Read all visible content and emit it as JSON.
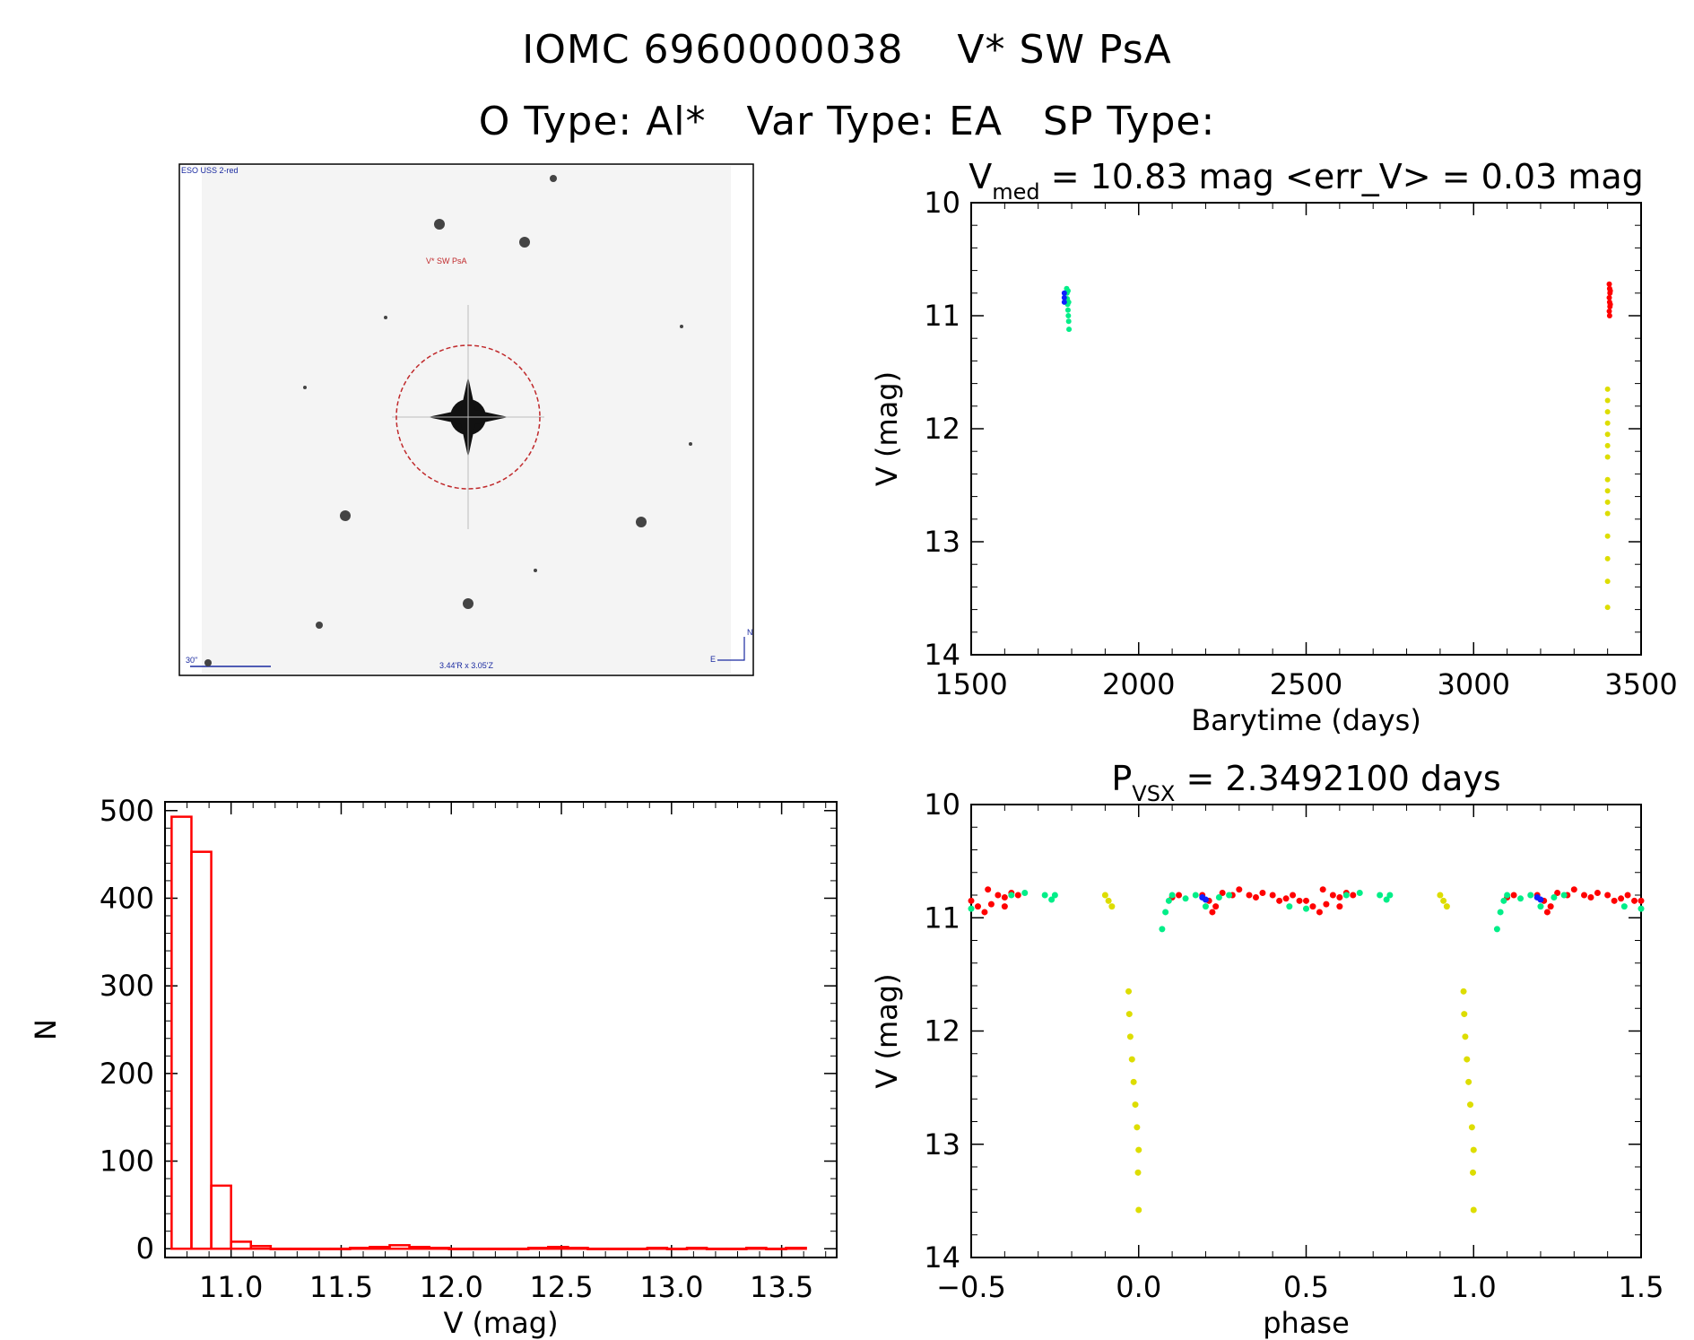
{
  "header": {
    "line1": "IOMC 6960000038    V* SW PsA",
    "line2": "O Type: Al*   Var Type: EA   SP Type:"
  },
  "image_panel": {
    "survey_label": "ESO USS 2-red",
    "target_label": "V* SW PsA",
    "scale_label": "30\"",
    "fov_label": "3.44'R x 3.05'Z",
    "north_label": "N",
    "east_label": "E",
    "circle_color": "#c0292b",
    "label_color": "#1a2aa0"
  },
  "colors": {
    "red": "#ff0000",
    "green": "#00ee88",
    "yellow": "#dddd00",
    "blue": "#1020ff"
  },
  "chart_data": [
    {
      "id": "lightcurve",
      "type": "scatter",
      "title_main": "V",
      "title_sub": "med",
      "title_rest": " =  10.83 mag <err_V> =  0.03 mag",
      "xlabel": "Barytime (days)",
      "ylabel": "V (mag)",
      "xlim": [
        1500,
        3500
      ],
      "ylim": [
        14,
        10
      ],
      "y_inverted": true,
      "xticks": [
        1500,
        2000,
        2500,
        3000,
        3500
      ],
      "yticks": [
        10,
        11,
        12,
        13,
        14
      ],
      "series": [
        {
          "color": "green",
          "points": [
            [
              1785,
              10.76
            ],
            [
              1786,
              10.8
            ],
            [
              1787,
              10.85
            ],
            [
              1788,
              10.9
            ],
            [
              1789,
              10.95
            ],
            [
              1790,
              11.0
            ],
            [
              1791,
              11.05
            ],
            [
              1792,
              11.12
            ],
            [
              1789,
              10.78
            ],
            [
              1791,
              10.88
            ]
          ]
        },
        {
          "color": "blue",
          "points": [
            [
              1778,
              10.8
            ],
            [
              1778,
              10.84
            ],
            [
              1778,
              10.88
            ]
          ]
        },
        {
          "color": "red",
          "points": [
            [
              3405,
              10.72
            ],
            [
              3406,
              10.76
            ],
            [
              3407,
              10.8
            ],
            [
              3405,
              10.84
            ],
            [
              3406,
              10.88
            ],
            [
              3407,
              10.92
            ],
            [
              3405,
              10.96
            ],
            [
              3406,
              11.0
            ],
            [
              3408,
              10.78
            ],
            [
              3408,
              10.9
            ]
          ]
        },
        {
          "color": "yellow",
          "points": [
            [
              3400,
              11.65
            ],
            [
              3400,
              11.75
            ],
            [
              3400,
              11.85
            ],
            [
              3400,
              11.95
            ],
            [
              3400,
              12.05
            ],
            [
              3400,
              12.15
            ],
            [
              3400,
              12.25
            ],
            [
              3400,
              12.45
            ],
            [
              3400,
              12.55
            ],
            [
              3400,
              12.65
            ],
            [
              3400,
              12.75
            ],
            [
              3400,
              12.95
            ],
            [
              3400,
              13.15
            ],
            [
              3400,
              13.35
            ],
            [
              3400,
              13.58
            ]
          ]
        }
      ]
    },
    {
      "id": "histogram",
      "type": "bar",
      "xlabel": "V (mag)",
      "ylabel": "N",
      "xlim": [
        10.7,
        13.75
      ],
      "ylim": [
        -10,
        510
      ],
      "xticks": [
        11.0,
        11.5,
        12.0,
        12.5,
        13.0,
        13.5
      ],
      "xtick_labels": [
        "11.0",
        "11.5",
        "12.0",
        "12.5",
        "13.0",
        "13.5"
      ],
      "yticks": [
        0,
        100,
        200,
        300,
        400,
        500
      ],
      "bin_width": 0.09,
      "bin_starts": [
        10.73,
        10.82,
        10.91,
        11.0,
        11.09,
        11.18,
        11.27,
        11.36,
        11.45,
        11.54,
        11.63,
        11.72,
        11.81,
        11.9,
        11.99,
        12.08,
        12.17,
        12.26,
        12.35,
        12.44,
        12.53,
        12.62,
        12.71,
        12.8,
        12.89,
        12.98,
        13.07,
        13.16,
        13.25,
        13.34,
        13.43,
        13.52
      ],
      "values": [
        493,
        453,
        72,
        8,
        3,
        0,
        0,
        0,
        0,
        1,
        2,
        4,
        2,
        1,
        0,
        0,
        0,
        0,
        1,
        2,
        1,
        0,
        0,
        0,
        1,
        0,
        1,
        0,
        0,
        1,
        0,
        1
      ]
    },
    {
      "id": "phased",
      "type": "scatter",
      "title_main": "P",
      "title_sub": "VSX",
      "title_rest": " =  2.3492100 days",
      "xlabel": "phase",
      "ylabel": "V (mag)",
      "xlim": [
        -0.5,
        1.5
      ],
      "ylim": [
        14,
        10
      ],
      "y_inverted": true,
      "xticks": [
        -0.5,
        0.0,
        0.5,
        1.0,
        1.5
      ],
      "xtick_labels": [
        "−0.5",
        "0.0",
        "0.5",
        "1.0",
        "1.5"
      ],
      "yticks": [
        10,
        11,
        12,
        13,
        14
      ],
      "phase_points": {
        "red": [
          [
            0.5,
            10.85
          ],
          [
            0.52,
            10.9
          ],
          [
            0.54,
            10.95
          ],
          [
            0.56,
            10.88
          ],
          [
            0.58,
            10.8
          ],
          [
            0.6,
            10.82
          ],
          [
            0.55,
            10.75
          ],
          [
            0.6,
            10.9
          ],
          [
            0.19,
            10.8
          ],
          [
            0.21,
            10.85
          ],
          [
            0.23,
            10.9
          ],
          [
            0.22,
            10.95
          ],
          [
            0.25,
            10.78
          ],
          [
            0.28,
            10.8
          ],
          [
            0.3,
            10.75
          ],
          [
            0.33,
            10.8
          ],
          [
            0.35,
            10.82
          ],
          [
            0.37,
            10.78
          ],
          [
            0.4,
            10.8
          ],
          [
            0.42,
            10.85
          ],
          [
            0.44,
            10.83
          ],
          [
            0.46,
            10.8
          ],
          [
            0.48,
            10.85
          ],
          [
            0.62,
            10.78
          ],
          [
            0.64,
            10.8
          ],
          [
            0.1,
            10.82
          ],
          [
            0.12,
            10.8
          ]
        ],
        "green": [
          [
            0.07,
            11.1
          ],
          [
            0.08,
            10.95
          ],
          [
            0.09,
            10.85
          ],
          [
            0.1,
            10.8
          ],
          [
            0.14,
            10.83
          ],
          [
            0.17,
            10.8
          ],
          [
            0.2,
            10.9
          ],
          [
            0.24,
            10.82
          ],
          [
            0.27,
            10.8
          ],
          [
            0.45,
            10.9
          ],
          [
            0.5,
            10.92
          ],
          [
            0.62,
            10.8
          ],
          [
            0.66,
            10.78
          ],
          [
            0.72,
            10.8
          ],
          [
            0.74,
            10.84
          ],
          [
            0.75,
            10.8
          ]
        ],
        "blue": [
          [
            0.19,
            10.82
          ],
          [
            0.2,
            10.84
          ]
        ],
        "yellow": [
          [
            -0.1,
            10.8
          ],
          [
            -0.09,
            10.85
          ],
          [
            -0.08,
            10.9
          ],
          [
            -0.03,
            11.65
          ],
          [
            -0.028,
            11.85
          ],
          [
            -0.025,
            12.05
          ],
          [
            -0.02,
            12.25
          ],
          [
            -0.015,
            12.45
          ],
          [
            -0.01,
            12.65
          ],
          [
            -0.005,
            12.85
          ],
          [
            0.0,
            13.05
          ],
          [
            -0.002,
            13.25
          ],
          [
            0.0,
            13.58
          ]
        ]
      }
    }
  ]
}
